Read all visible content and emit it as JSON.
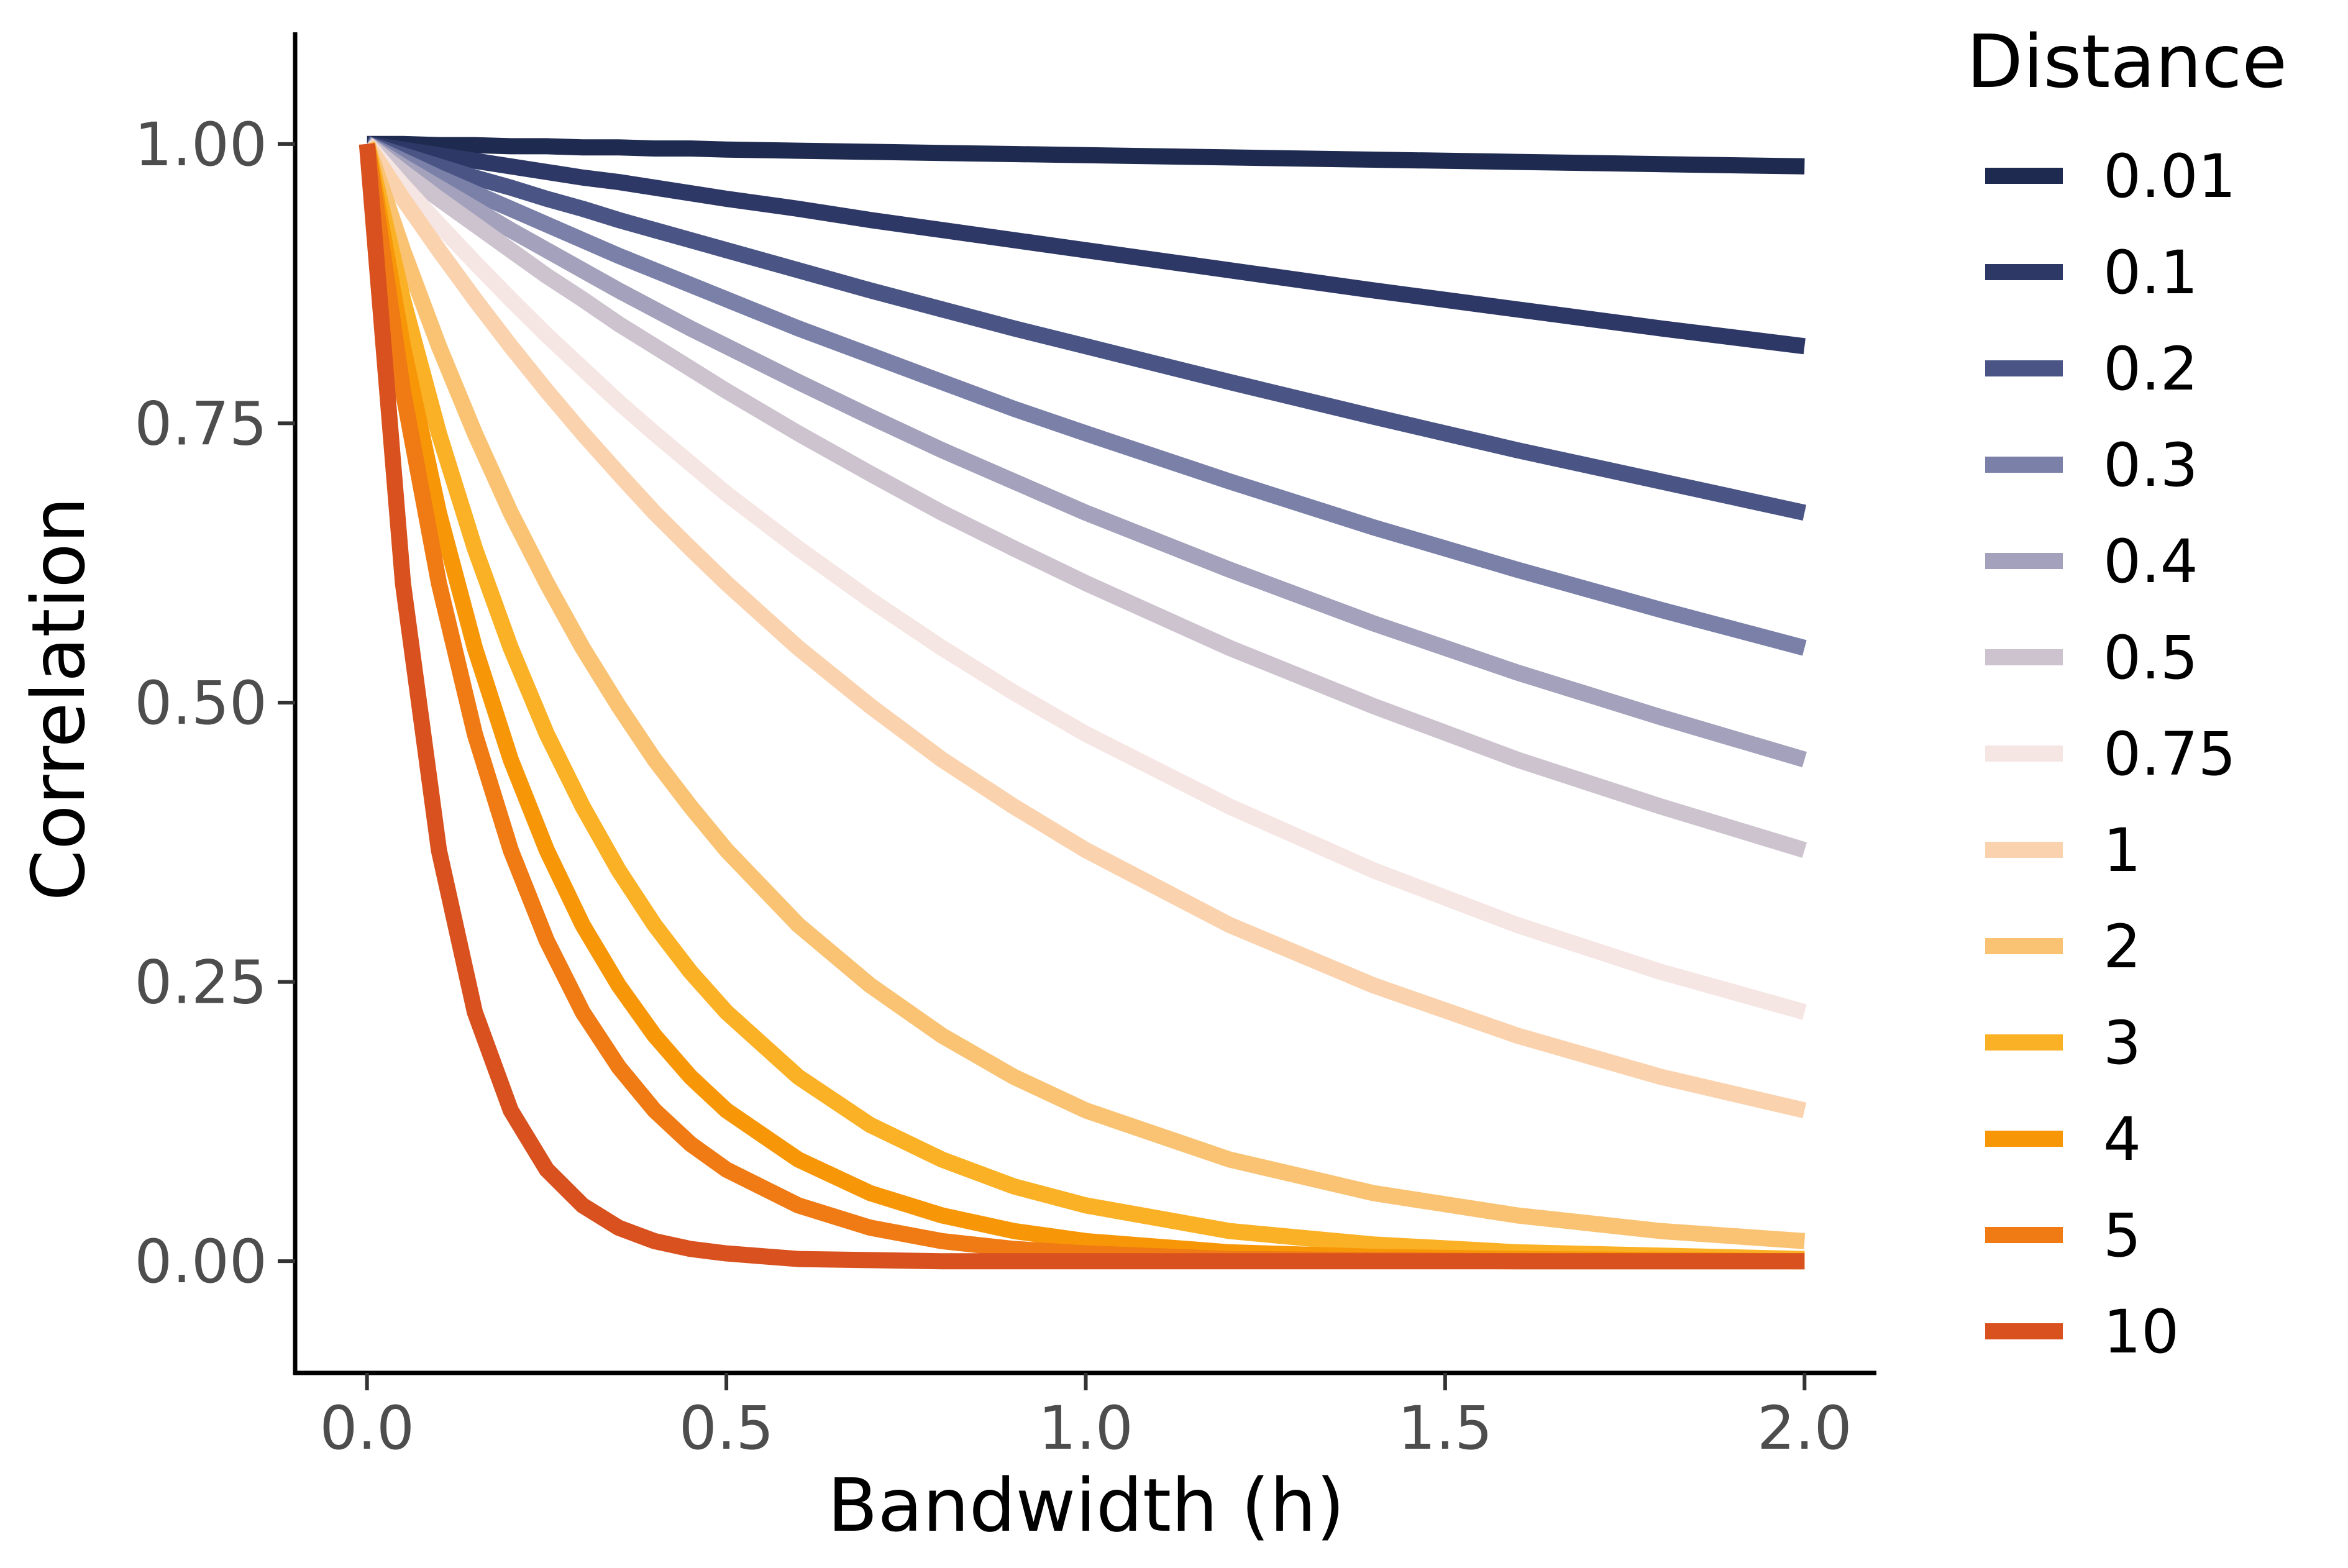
{
  "chart_data": {
    "type": "line",
    "xlabel": "Bandwidth (h)",
    "ylabel": "Correlation",
    "xlim": [
      -0.1,
      2.1
    ],
    "ylim": [
      -0.1,
      1.1
    ],
    "x_ticks": [
      0.0,
      0.5,
      1.0,
      1.5,
      2.0
    ],
    "x_tick_labels": [
      "0.0",
      "0.5",
      "1.0",
      "1.5",
      "2.0"
    ],
    "y_ticks": [
      0.0,
      0.25,
      0.5,
      0.75,
      1.0
    ],
    "y_tick_labels": [
      "0.00",
      "0.25",
      "0.50",
      "0.75",
      "1.00"
    ],
    "grid": false,
    "legend": {
      "title": "Distance",
      "placement": "right"
    },
    "x": [
      0.0,
      0.05,
      0.1,
      0.15,
      0.2,
      0.25,
      0.3,
      0.35,
      0.4,
      0.45,
      0.5,
      0.6,
      0.7,
      0.8,
      0.9,
      1.0,
      1.2,
      1.4,
      1.6,
      1.8,
      2.0
    ],
    "series": [
      {
        "name": "0.01",
        "color": "#1e2a4f",
        "values": [
          1.0,
          1.0,
          0.999,
          0.999,
          0.998,
          0.998,
          0.997,
          0.997,
          0.996,
          0.996,
          0.995,
          0.994,
          0.993,
          0.992,
          0.991,
          0.99,
          0.988,
          0.986,
          0.984,
          0.982,
          0.98
        ]
      },
      {
        "name": "0.1",
        "color": "#2e3866",
        "values": [
          1.0,
          0.995,
          0.99,
          0.985,
          0.98,
          0.975,
          0.97,
          0.966,
          0.961,
          0.956,
          0.951,
          0.942,
          0.932,
          0.923,
          0.914,
          0.905,
          0.887,
          0.869,
          0.852,
          0.835,
          0.819
        ]
      },
      {
        "name": "0.2",
        "color": "#4a5585",
        "values": [
          1.0,
          0.99,
          0.98,
          0.97,
          0.961,
          0.951,
          0.942,
          0.932,
          0.923,
          0.914,
          0.905,
          0.887,
          0.869,
          0.852,
          0.835,
          0.819,
          0.787,
          0.756,
          0.726,
          0.698,
          0.67
        ]
      },
      {
        "name": "0.3",
        "color": "#7a80a8",
        "values": [
          1.0,
          0.985,
          0.97,
          0.956,
          0.942,
          0.928,
          0.914,
          0.9,
          0.887,
          0.874,
          0.861,
          0.835,
          0.811,
          0.787,
          0.763,
          0.741,
          0.698,
          0.657,
          0.619,
          0.583,
          0.549
        ]
      },
      {
        "name": "0.4",
        "color": "#a3a1bb",
        "values": [
          1.0,
          0.98,
          0.961,
          0.942,
          0.923,
          0.905,
          0.887,
          0.869,
          0.852,
          0.835,
          0.819,
          0.787,
          0.756,
          0.726,
          0.698,
          0.67,
          0.619,
          0.571,
          0.527,
          0.487,
          0.449
        ]
      },
      {
        "name": "0.5",
        "color": "#cdc3cf",
        "values": [
          1.0,
          0.975,
          0.951,
          0.928,
          0.905,
          0.882,
          0.861,
          0.839,
          0.819,
          0.799,
          0.779,
          0.741,
          0.705,
          0.67,
          0.638,
          0.607,
          0.549,
          0.497,
          0.449,
          0.407,
          0.368
        ]
      },
      {
        "name": "0.75",
        "color": "#f6e6e3",
        "values": [
          1.0,
          0.963,
          0.928,
          0.894,
          0.861,
          0.829,
          0.799,
          0.769,
          0.741,
          0.714,
          0.687,
          0.638,
          0.592,
          0.549,
          0.509,
          0.472,
          0.407,
          0.35,
          0.301,
          0.259,
          0.223
        ]
      },
      {
        "name": "1",
        "color": "#fad2ad",
        "values": [
          1.0,
          0.951,
          0.905,
          0.861,
          0.819,
          0.779,
          0.741,
          0.705,
          0.67,
          0.638,
          0.607,
          0.549,
          0.497,
          0.449,
          0.407,
          0.368,
          0.301,
          0.247,
          0.202,
          0.165,
          0.135
        ]
      },
      {
        "name": "2",
        "color": "#f9c373",
        "values": [
          1.0,
          0.905,
          0.819,
          0.741,
          0.67,
          0.607,
          0.549,
          0.497,
          0.449,
          0.407,
          0.368,
          0.301,
          0.247,
          0.202,
          0.165,
          0.135,
          0.091,
          0.061,
          0.041,
          0.027,
          0.018
        ]
      },
      {
        "name": "3",
        "color": "#fbb125",
        "values": [
          1.0,
          0.861,
          0.741,
          0.638,
          0.549,
          0.472,
          0.407,
          0.35,
          0.301,
          0.259,
          0.223,
          0.165,
          0.122,
          0.091,
          0.067,
          0.05,
          0.027,
          0.015,
          0.008,
          0.005,
          0.002
        ]
      },
      {
        "name": "4",
        "color": "#f79708",
        "values": [
          1.0,
          0.819,
          0.67,
          0.549,
          0.449,
          0.368,
          0.301,
          0.247,
          0.202,
          0.165,
          0.135,
          0.091,
          0.061,
          0.041,
          0.027,
          0.018,
          0.008,
          0.004,
          0.002,
          0.001,
          0.0
        ]
      },
      {
        "name": "5",
        "color": "#f07a13",
        "values": [
          1.0,
          0.779,
          0.607,
          0.472,
          0.368,
          0.287,
          0.223,
          0.174,
          0.135,
          0.105,
          0.082,
          0.05,
          0.03,
          0.018,
          0.011,
          0.007,
          0.002,
          0.001,
          0.0,
          0.0,
          0.0
        ]
      },
      {
        "name": "10",
        "color": "#d8511e",
        "values": [
          1.0,
          0.607,
          0.368,
          0.223,
          0.135,
          0.082,
          0.05,
          0.03,
          0.018,
          0.011,
          0.007,
          0.002,
          0.001,
          0.0,
          0.0,
          0.0,
          0.0,
          0.0,
          0.0,
          0.0,
          0.0
        ]
      }
    ]
  }
}
